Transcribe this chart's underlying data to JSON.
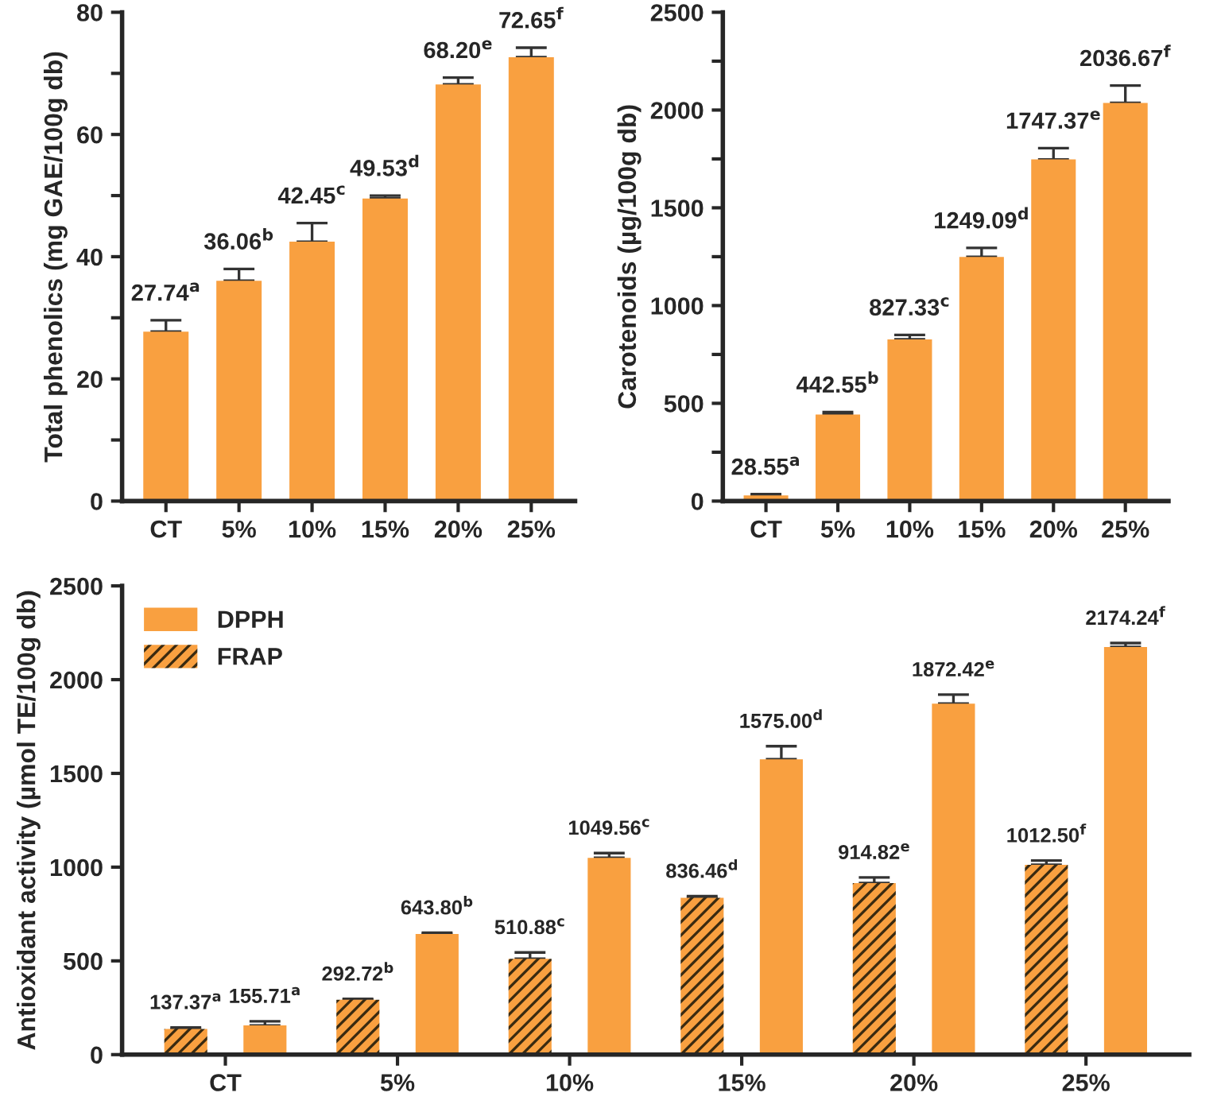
{
  "chart_data": [
    {
      "type": "bar",
      "ylabel": "Total phenolics (mg GAE/100g db)",
      "categories": [
        "CT",
        "5%",
        "10%",
        "15%",
        "20%",
        "25%"
      ],
      "values": [
        27.74,
        36.06,
        42.45,
        49.53,
        68.2,
        72.65
      ],
      "color": "#f9a040",
      "errors": [
        [
          27.74,
          29.6
        ],
        [
          36.06,
          38.0
        ],
        [
          42.45,
          45.5
        ],
        [
          49.53,
          50.0
        ],
        [
          68.2,
          69.3
        ],
        [
          72.65,
          74.2
        ]
      ],
      "value_labels": [
        "27.74$^{a}$",
        "36.06$^{b}$",
        "42.45$^{c}$",
        "49.53$^{d}$",
        "68.20$^{e}$",
        "72.65$^{f}$"
      ],
      "ylim": [
        0,
        80
      ],
      "yticks": [
        0,
        {
          "value": 10,
          "label": null
        },
        20,
        {
          "value": 30,
          "label": null
        },
        40,
        {
          "value": 50,
          "label": null
        },
        60,
        {
          "value": 70,
          "label": null
        },
        80
      ],
      "grid": false,
      "legend": false
    },
    {
      "type": "bar",
      "ylabel": "Carotenoids (µg/100g db)",
      "categories": [
        "CT",
        "5%",
        "10%",
        "15%",
        "20%",
        "25%"
      ],
      "values": [
        28.55,
        442.55,
        827.33,
        1249.09,
        1747.37,
        2036.67
      ],
      "color": "#f9a040",
      "errors": [
        [
          28.55,
          35
        ],
        [
          442.55,
          455
        ],
        [
          827.33,
          850
        ],
        [
          1249.09,
          1295
        ],
        [
          1747.37,
          1805
        ],
        [
          2036.67,
          2125
        ]
      ],
      "value_labels": [
        "28.55$^{a}$",
        "442.55$^{b}$",
        "827.33$^{c}$",
        "1249.09$^{d}$",
        "1747.37$^{e}$",
        "2036.67$^{f}$"
      ],
      "ylim": [
        0,
        2500
      ],
      "yticks": [
        0,
        {
          "value": 250,
          "label": null
        },
        500,
        {
          "value": 750,
          "label": null
        },
        1000,
        {
          "value": 1250,
          "label": null
        },
        1500,
        {
          "value": 1750,
          "label": null
        },
        2000,
        {
          "value": 2250,
          "label": null
        },
        2500
      ],
      "grid": false,
      "legend": false
    },
    {
      "type": "bar",
      "ylabel": "Antioxidant activity (µmol TE/100g db)",
      "categories": [
        "CT",
        "5%",
        "10%",
        "15%",
        "20%",
        "25%"
      ],
      "series": [
        {
          "name": "FRAP",
          "color": "#f9a040",
          "values": [
            137.37,
            292.72,
            510.88,
            836.46,
            914.82,
            1012.5
          ],
          "errors": [
            [
              137.37,
              145
            ],
            [
              292.72,
              297
            ],
            [
              510.88,
              545
            ],
            [
              836.46,
              845
            ],
            [
              914.82,
              945
            ],
            [
              1012.5,
              1035
            ]
          ],
          "value_labels": [
            "137.37$^{a}$",
            "292.72$^{b}$",
            "510.88$^{c}$",
            "836.46$^{d}$",
            "914.82$^{e}$",
            "1012.50$^{f}$"
          ]
        },
        {
          "name": "DPPH",
          "color": "#f9a040",
          "values": [
            155.71,
            643.8,
            1049.56,
            1575.0,
            1872.42,
            2174.24
          ],
          "errors": [
            [
              155.71,
              178
            ],
            [
              643.8,
              650
            ],
            [
              1049.56,
              1075
            ],
            [
              1575.0,
              1645
            ],
            [
              1872.42,
              1920
            ],
            [
              2174.24,
              2195
            ]
          ],
          "value_labels": [
            "155.71$^{a}$",
            "643.80$^{b}$",
            "1049.56$^{c}$",
            "1575.00$^{d}$",
            "1872.42$^{e}$",
            "2174.24$^{f}$"
          ]
        }
      ],
      "ylim": [
        0,
        2500
      ],
      "yticks": [
        0,
        500,
        1000,
        1500,
        2000,
        2500
      ],
      "grid": false,
      "legend": "top left"
    }
  ]
}
